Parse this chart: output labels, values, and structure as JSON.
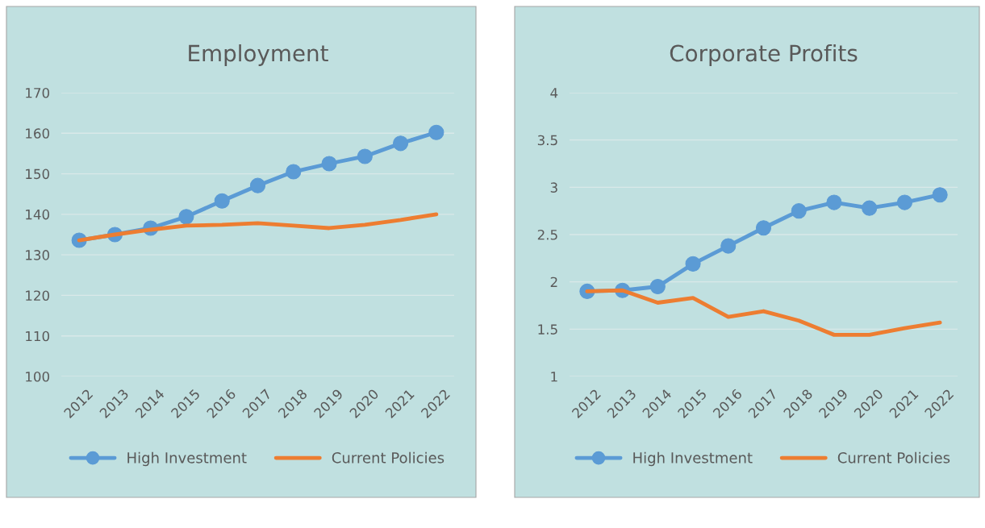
{
  "chart_data": [
    {
      "type": "line",
      "title": "Employment",
      "categories": [
        "2012",
        "2013",
        "2014",
        "2015",
        "2016",
        "2017",
        "2018",
        "2019",
        "2020",
        "2021",
        "2022"
      ],
      "series": [
        {
          "name": "High Investment",
          "color": "#5b9bd5",
          "marker": "circle",
          "values": [
            133.6,
            135,
            136.6,
            139.4,
            143.3,
            147.1,
            150.5,
            152.5,
            154.3,
            157.5,
            160.2
          ]
        },
        {
          "name": "Current Policies",
          "color": "#ed7d31",
          "marker": "none",
          "values": [
            133.6,
            135,
            136.2,
            137.2,
            137.4,
            137.8,
            137.2,
            136.6,
            137.4,
            138.6,
            140
          ]
        }
      ],
      "ylim": [
        100,
        170
      ],
      "yticks": [
        100,
        110,
        120,
        130,
        140,
        150,
        160,
        170
      ],
      "grid": "y",
      "legend": "bottom"
    },
    {
      "type": "line",
      "title": "Corporate Profits",
      "categories": [
        "2012",
        "2013",
        "2014",
        "2015",
        "2016",
        "2017",
        "2018",
        "2019",
        "2020",
        "2021",
        "2022"
      ],
      "series": [
        {
          "name": "High Investment",
          "color": "#5b9bd5",
          "marker": "circle",
          "values": [
            1.9,
            1.91,
            1.95,
            2.19,
            2.38,
            2.57,
            2.75,
            2.84,
            2.78,
            2.84,
            2.92
          ]
        },
        {
          "name": "Current Policies",
          "color": "#ed7d31",
          "marker": "none",
          "values": [
            1.9,
            1.91,
            1.78,
            1.83,
            1.63,
            1.69,
            1.59,
            1.44,
            1.44,
            1.51,
            1.57
          ]
        }
      ],
      "ylim": [
        1,
        4
      ],
      "yticks": [
        1,
        1.5,
        2,
        2.5,
        3,
        3.5,
        4
      ],
      "grid": "y",
      "legend": "bottom"
    }
  ]
}
